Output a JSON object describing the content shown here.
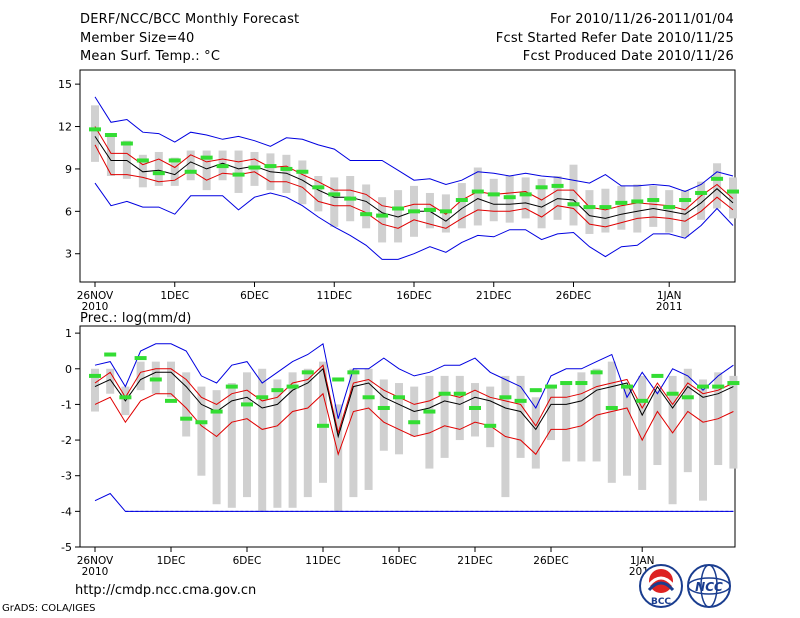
{
  "header": {
    "title": "DERF/NCC/BCC Monthly Forecast",
    "member": "Member Size=40",
    "variable1": "Mean Surf. Temp.: °C",
    "period": "For 2010/11/26-2011/01/04",
    "started": "Fcst Started Refer Date 2010/11/25",
    "produced": "Fcst Produced Date 2010/11/26"
  },
  "panel2_label": "Prec.: log(mm/d)",
  "footer": {
    "url": "http://cmdp.ncc.cma.gov.cn",
    "grads": "GrADS: COLA/IGES",
    "logo1_text": "BCC",
    "logo2_text": "NCC"
  },
  "colors": {
    "mean": "#000000",
    "spread": "#e00000",
    "extreme": "#0000e0",
    "box": "#d0d0d0",
    "obs": "#33dd33"
  },
  "chart_data": [
    {
      "type": "line",
      "title": "Mean Surf. Temp.: °C",
      "ylim": [
        1,
        16
      ],
      "yticks": [
        3,
        6,
        9,
        12,
        15
      ],
      "xticks": [
        {
          "day": 0,
          "label": "26NOV",
          "sub": "2010"
        },
        {
          "day": 5,
          "label": "1DEC",
          "sub": ""
        },
        {
          "day": 10,
          "label": "6DEC",
          "sub": ""
        },
        {
          "day": 15,
          "label": "11DEC",
          "sub": ""
        },
        {
          "day": 20,
          "label": "16DEC",
          "sub": ""
        },
        {
          "day": 25,
          "label": "21DEC",
          "sub": ""
        },
        {
          "day": 30,
          "label": "26DEC",
          "sub": ""
        },
        {
          "day": 36,
          "label": "1JAN",
          "sub": "2011"
        }
      ],
      "series": [
        {
          "name": "max",
          "values": [
            14.1,
            12.3,
            12.5,
            11.6,
            11.5,
            10.9,
            11.6,
            11.4,
            11.1,
            11.3,
            11.0,
            10.6,
            11.2,
            11.1,
            10.7,
            10.4,
            9.6,
            9.6,
            9.6,
            8.9,
            8.2,
            8.3,
            7.9,
            8.2,
            8.8,
            8.7,
            8.5,
            8.7,
            8.5,
            8.4,
            8.2,
            8.0,
            8.6,
            7.8,
            7.8,
            7.9,
            7.8,
            7.4,
            7.9,
            8.8,
            8.5
          ]
        },
        {
          "name": "mean_plus",
          "values": [
            12.0,
            10.1,
            10.1,
            9.3,
            9.7,
            9.1,
            10.0,
            9.5,
            9.7,
            9.5,
            9.7,
            9.1,
            9.2,
            8.6,
            8.1,
            7.5,
            7.5,
            7.2,
            6.4,
            6.2,
            6.5,
            6.5,
            5.8,
            6.8,
            7.4,
            7.2,
            7.3,
            7.4,
            6.8,
            7.5,
            7.5,
            6.3,
            6.1,
            6.4,
            6.6,
            6.5,
            6.4,
            6.1,
            7.1,
            7.9,
            6.9
          ]
        },
        {
          "name": "mean",
          "values": [
            11.3,
            9.6,
            9.6,
            8.8,
            8.9,
            8.6,
            9.5,
            9.0,
            9.4,
            9.0,
            9.2,
            8.8,
            8.7,
            8.2,
            7.5,
            7.0,
            7.0,
            6.7,
            5.9,
            5.6,
            6.0,
            6.0,
            5.3,
            6.2,
            6.9,
            6.5,
            6.5,
            6.6,
            6.3,
            6.9,
            6.8,
            5.7,
            5.5,
            5.8,
            6.0,
            6.2,
            6.0,
            5.8,
            6.6,
            7.6,
            6.6
          ]
        },
        {
          "name": "mean_minus",
          "values": [
            10.7,
            8.6,
            8.6,
            8.4,
            8.1,
            8.2,
            8.9,
            8.2,
            8.7,
            8.6,
            8.8,
            8.1,
            8.1,
            7.7,
            6.7,
            6.4,
            6.4,
            5.9,
            5.1,
            4.8,
            5.4,
            5.1,
            4.8,
            5.5,
            6.1,
            6.0,
            6.0,
            6.2,
            5.6,
            6.4,
            6.2,
            5.1,
            4.9,
            5.2,
            5.5,
            5.6,
            5.5,
            5.3,
            6.0,
            7.0,
            6.1
          ]
        },
        {
          "name": "min",
          "values": [
            8.0,
            6.4,
            6.7,
            6.3,
            6.3,
            5.8,
            7.1,
            7.1,
            7.1,
            6.1,
            7.0,
            7.3,
            7.0,
            6.4,
            5.6,
            4.9,
            4.3,
            3.6,
            2.6,
            2.6,
            3.0,
            3.5,
            3.1,
            3.8,
            4.3,
            4.2,
            4.7,
            4.7,
            4.0,
            4.4,
            4.5,
            3.5,
            2.8,
            3.5,
            3.6,
            4.4,
            4.4,
            4.1,
            5.0,
            6.2,
            5.0
          ]
        }
      ],
      "boxes": [
        [
          9.5,
          13.5
        ],
        [
          8.5,
          11.5
        ],
        [
          8.3,
          11.0
        ],
        [
          7.7,
          10.0
        ],
        [
          7.8,
          10.2
        ],
        [
          7.8,
          9.8
        ],
        [
          8.2,
          10.3
        ],
        [
          7.5,
          10.3
        ],
        [
          8.2,
          10.3
        ],
        [
          7.3,
          10.3
        ],
        [
          7.8,
          10.2
        ],
        [
          7.5,
          10.1
        ],
        [
          7.3,
          10.0
        ],
        [
          6.5,
          9.6
        ],
        [
          6.0,
          8.5
        ],
        [
          4.9,
          8.4
        ],
        [
          5.3,
          8.5
        ],
        [
          4.8,
          7.9
        ],
        [
          3.8,
          7.0
        ],
        [
          3.8,
          7.5
        ],
        [
          4.2,
          7.8
        ],
        [
          4.8,
          7.3
        ],
        [
          4.5,
          7.2
        ],
        [
          4.8,
          8.0
        ],
        [
          5.0,
          9.1
        ],
        [
          5.3,
          8.3
        ],
        [
          5.2,
          8.5
        ],
        [
          5.5,
          8.4
        ],
        [
          4.8,
          8.3
        ],
        [
          5.4,
          8.5
        ],
        [
          5.0,
          9.3
        ],
        [
          4.4,
          7.5
        ],
        [
          4.5,
          7.6
        ],
        [
          4.7,
          7.8
        ],
        [
          4.5,
          7.9
        ],
        [
          4.9,
          7.8
        ],
        [
          4.5,
          7.5
        ],
        [
          4.2,
          7.5
        ],
        [
          5.4,
          8.1
        ],
        [
          6.2,
          9.4
        ],
        [
          5.5,
          8.4
        ]
      ],
      "observed": [
        11.8,
        11.4,
        10.8,
        9.6,
        8.7,
        9.6,
        8.8,
        9.8,
        9.2,
        8.6,
        9.1,
        9.2,
        9.0,
        8.8,
        7.7,
        7.2,
        6.9,
        5.8,
        5.7,
        6.2,
        6.0,
        6.1,
        6.0,
        6.8,
        7.4,
        7.2,
        7.0,
        7.2,
        7.7,
        7.8,
        6.5,
        6.3,
        6.3,
        6.6,
        6.7,
        6.8,
        6.3,
        6.8,
        7.3,
        8.3,
        7.4
      ]
    },
    {
      "type": "line",
      "title": "Prec.: log(mm/d)",
      "ylim": [
        -5,
        1.2
      ],
      "yticks": [
        -5,
        -4,
        -3,
        -2,
        -1,
        0,
        1
      ],
      "xticks": [
        {
          "day": 0,
          "label": "26NOV",
          "sub": "2010"
        },
        {
          "day": 5,
          "label": "1DEC",
          "sub": ""
        },
        {
          "day": 10,
          "label": "6DEC",
          "sub": ""
        },
        {
          "day": 15,
          "label": "11DEC",
          "sub": ""
        },
        {
          "day": 20,
          "label": "16DEC",
          "sub": ""
        },
        {
          "day": 25,
          "label": "21DEC",
          "sub": ""
        },
        {
          "day": 30,
          "label": "26DEC",
          "sub": ""
        },
        {
          "day": 36,
          "label": "1JAN",
          "sub": "2011"
        }
      ],
      "series": [
        {
          "name": "max",
          "values": [
            0.1,
            0.2,
            -0.5,
            0.5,
            0.7,
            0.7,
            0.5,
            -0.2,
            -0.4,
            0.1,
            0.2,
            -0.4,
            -0.1,
            0.2,
            0.4,
            0.7,
            -1.4,
            0.0,
            0.0,
            0.3,
            0.0,
            -0.2,
            -0.1,
            0.1,
            0.1,
            0.3,
            -0.1,
            -0.3,
            -0.5,
            -1.1,
            -0.2,
            0.0,
            0.0,
            0.2,
            0.4,
            -0.8,
            -0.1,
            -0.7,
            0.0,
            -0.2,
            -0.6,
            -0.2,
            0.1
          ]
        },
        {
          "name": "mean_plus",
          "values": [
            -0.4,
            -0.1,
            -0.8,
            -0.1,
            0.0,
            0.0,
            -0.3,
            -0.8,
            -1.0,
            -0.7,
            -0.6,
            -0.9,
            -0.8,
            -0.4,
            -0.3,
            0.1,
            -1.8,
            -0.4,
            -0.3,
            -0.6,
            -0.8,
            -1.0,
            -0.9,
            -0.7,
            -0.8,
            -0.6,
            -0.8,
            -0.9,
            -1.0,
            -1.6,
            -0.8,
            -0.8,
            -0.7,
            -0.5,
            -0.4,
            -0.3,
            -1.1,
            -0.4,
            -1.0,
            -0.4,
            -0.7,
            -0.6,
            -0.4
          ]
        },
        {
          "name": "mean",
          "values": [
            -0.5,
            -0.3,
            -0.9,
            -0.3,
            -0.1,
            -0.1,
            -0.5,
            -1.0,
            -1.2,
            -0.9,
            -0.8,
            -1.1,
            -1.0,
            -0.6,
            -0.4,
            0.0,
            -1.9,
            -0.5,
            -0.4,
            -0.8,
            -1.0,
            -1.2,
            -1.1,
            -0.9,
            -1.0,
            -0.8,
            -0.9,
            -1.1,
            -1.2,
            -1.7,
            -1.0,
            -1.0,
            -0.9,
            -0.6,
            -0.5,
            -0.4,
            -1.3,
            -0.5,
            -1.1,
            -0.5,
            -0.8,
            -0.7,
            -0.5
          ]
        },
        {
          "name": "mean_minus",
          "values": [
            -1.0,
            -0.8,
            -1.5,
            -0.9,
            -0.7,
            -0.7,
            -1.1,
            -1.6,
            -1.9,
            -1.5,
            -1.4,
            -1.7,
            -1.6,
            -1.2,
            -1.1,
            -0.7,
            -2.4,
            -1.2,
            -1.1,
            -1.5,
            -1.7,
            -1.9,
            -1.8,
            -1.6,
            -1.7,
            -1.5,
            -1.6,
            -1.9,
            -2.0,
            -2.4,
            -1.7,
            -1.7,
            -1.6,
            -1.3,
            -1.2,
            -1.1,
            -2.0,
            -1.2,
            -1.8,
            -1.2,
            -1.5,
            -1.4,
            -1.2
          ]
        },
        {
          "name": "min",
          "values": [
            -3.7,
            -3.5,
            -4.0,
            -4.0,
            -4.0,
            -4.0,
            -4.0,
            -4.0,
            -4.0,
            -4.0,
            -4.0,
            -4.0,
            -4.0,
            -4.0,
            -4.0,
            -4.0,
            -4.0,
            -4.0,
            -4.0,
            -4.0,
            -4.0,
            -4.0,
            -4.0,
            -4.0,
            -4.0,
            -4.0,
            -4.0,
            -4.0,
            -4.0,
            -4.0,
            -4.0,
            -4.0,
            -4.0,
            -4.0,
            -4.0,
            -4.0,
            -4.0,
            -4.0,
            -4.0,
            -4.0,
            -4.0,
            -4.0,
            -4.0
          ]
        },
        {
          "name": "lower_dash",
          "values": [
            -4.0,
            -4.0
          ]
        }
      ],
      "boxes": [
        [
          -1.2,
          0.0
        ],
        [
          -0.7,
          0.0
        ],
        [
          -1.3,
          -0.5
        ],
        [
          -0.6,
          0.2
        ],
        [
          -0.7,
          0.2
        ],
        [
          -0.8,
          0.2
        ],
        [
          -1.9,
          -0.1
        ],
        [
          -3.0,
          -0.5
        ],
        [
          -3.8,
          -0.6
        ],
        [
          -3.9,
          -0.4
        ],
        [
          -3.6,
          -0.1
        ],
        [
          -4.0,
          0.0
        ],
        [
          -3.9,
          -0.3
        ],
        [
          -3.9,
          -0.1
        ],
        [
          -3.6,
          0.0
        ],
        [
          -3.2,
          0.2
        ],
        [
          -4.0,
          -1.0
        ],
        [
          -3.6,
          0.0
        ],
        [
          -3.4,
          0.0
        ],
        [
          -2.3,
          -0.3
        ],
        [
          -2.4,
          -0.4
        ],
        [
          -1.9,
          -0.5
        ],
        [
          -2.8,
          -0.2
        ],
        [
          -2.5,
          -0.2
        ],
        [
          -2.0,
          -0.2
        ],
        [
          -1.9,
          -0.4
        ],
        [
          -2.2,
          -0.5
        ],
        [
          -3.6,
          -0.2
        ],
        [
          -2.5,
          -0.2
        ],
        [
          -2.8,
          -0.8
        ],
        [
          -2.0,
          -0.5
        ],
        [
          -2.6,
          -0.4
        ],
        [
          -2.6,
          -0.1
        ],
        [
          -2.6,
          0.0
        ],
        [
          -3.2,
          0.2
        ],
        [
          -3.0,
          -0.5
        ],
        [
          -3.4,
          -0.2
        ],
        [
          -2.7,
          -0.6
        ],
        [
          -3.8,
          -0.2
        ],
        [
          -2.9,
          0.0
        ],
        [
          -3.7,
          -0.3
        ],
        [
          -2.7,
          -0.1
        ],
        [
          -2.8,
          -0.2
        ]
      ],
      "observed": [
        -0.2,
        0.4,
        -0.8,
        0.3,
        -0.3,
        -0.9,
        -1.4,
        -1.5,
        -1.2,
        -0.5,
        -1.0,
        -0.8,
        -0.6,
        -0.5,
        -0.1,
        -1.6,
        -0.3,
        -0.1,
        -0.8,
        -1.1,
        -0.8,
        -1.5,
        -1.2,
        -0.7,
        -0.7,
        -1.1,
        -1.6,
        -0.8,
        -0.9,
        -0.6,
        -0.5,
        -0.4,
        -0.4,
        -0.1,
        -1.1,
        -0.5,
        -0.9,
        -0.2,
        -0.7,
        -0.8,
        -0.5,
        -0.5,
        -0.4
      ]
    }
  ]
}
